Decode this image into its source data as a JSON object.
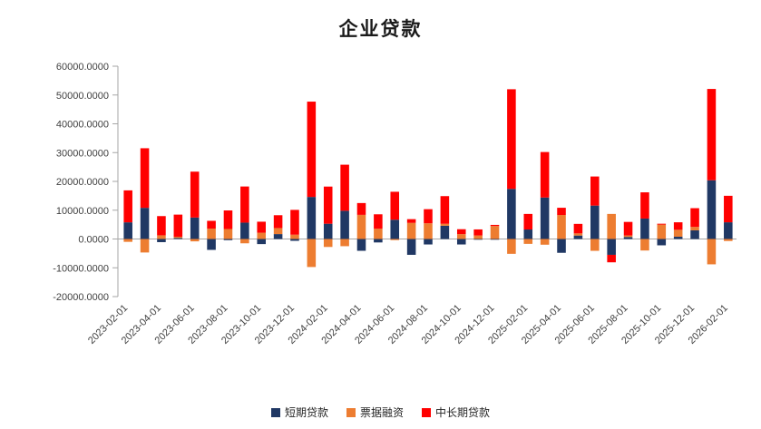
{
  "colors": {
    "short_term": "#203864",
    "bill": "#ED7D31",
    "mid_long": "#FF0000",
    "axis": "#A6A6A6",
    "tick_label": "#404040"
  },
  "chart_data": {
    "type": "bar",
    "stacked": true,
    "title": "企业贷款",
    "xlabel": "",
    "ylabel": "",
    "grid": false,
    "legend_position": "bottom",
    "ylim": [
      -20000,
      60000
    ],
    "y_tick_step": 10000,
    "y_ticks": [
      "60000.0000",
      "50000.0000",
      "40000.0000",
      "30000.0000",
      "20000.0000",
      "10000.0000",
      "0.0000",
      "-10000.0000",
      "-20000.0000"
    ],
    "categories": [
      "2023-02-01",
      "2023-03-01",
      "2023-04-01",
      "2023-05-01",
      "2023-06-01",
      "2023-07-01",
      "2023-08-01",
      "2023-09-01",
      "2023-10-01",
      "2023-11-01",
      "2023-12-01",
      "2024-01-01",
      "2024-02-01",
      "2024-03-01",
      "2024-04-01",
      "2024-05-01",
      "2024-06-01",
      "2024-07-01",
      "2024-08-01",
      "2024-09-01",
      "2024-10-01",
      "2024-11-01",
      "2024-12-01",
      "2025-01-01",
      "2025-02-01",
      "2025-03-01",
      "2025-04-01",
      "2025-05-01",
      "2025-06-01",
      "2025-07-01",
      "2025-08-01",
      "2025-09-01",
      "2025-10-01",
      "2025-11-01",
      "2025-12-01",
      "2026-01-01",
      "2026-02-01"
    ],
    "x_tick_labels": [
      "2023-02-01",
      "2023-04-01",
      "2023-06-01",
      "2023-08-01",
      "2023-10-01",
      "2023-12-01",
      "2024-02-01",
      "2024-04-01",
      "2024-06-01",
      "2024-08-01",
      "2024-10-01",
      "2024-12-01",
      "2025-02-01",
      "2025-04-01",
      "2025-06-01",
      "2025-08-01",
      "2025-10-01",
      "2025-12-01",
      "2026-02-01"
    ],
    "series": [
      {
        "name": "短期贷款",
        "color": "#203864",
        "values": [
          5785,
          10815,
          -1099,
          350,
          7449,
          -3785,
          -401,
          5686,
          -1770,
          1705,
          -635,
          14600,
          5300,
          9800,
          -4100,
          -1200,
          6700,
          -5500,
          -1900,
          4600,
          -1900,
          -100,
          -200,
          17400,
          3300,
          14400,
          -4800,
          1200,
          11600,
          -5500,
          700,
          7100,
          -2200,
          800,
          3000,
          20400,
          5800
        ]
      },
      {
        "name": "票据融资",
        "color": "#ED7D31",
        "values": [
          -989,
          -4687,
          1280,
          420,
          -821,
          3597,
          3472,
          -1500,
          2176,
          2092,
          1497,
          -9733,
          -2767,
          -2500,
          8381,
          3572,
          -393,
          5586,
          5451,
          686,
          1694,
          1223,
          4500,
          -5149,
          -1693,
          -1986,
          8341,
          746,
          -4109,
          8700,
          531,
          -4000,
          5000,
          2400,
          1200,
          -8800,
          -700
        ]
      },
      {
        "name": "中长期贷款",
        "color": "#FF0000",
        "values": [
          11100,
          20700,
          6669,
          7698,
          15933,
          2712,
          6444,
          12544,
          3828,
          4460,
          8612,
          33100,
          12900,
          16000,
          4100,
          5000,
          9700,
          1300,
          4900,
          9600,
          1700,
          2100,
          400,
          34600,
          5400,
          15800,
          2500,
          3300,
          10100,
          -2600,
          4700,
          9100,
          300,
          2600,
          6500,
          31700,
          9200
        ]
      }
    ]
  }
}
